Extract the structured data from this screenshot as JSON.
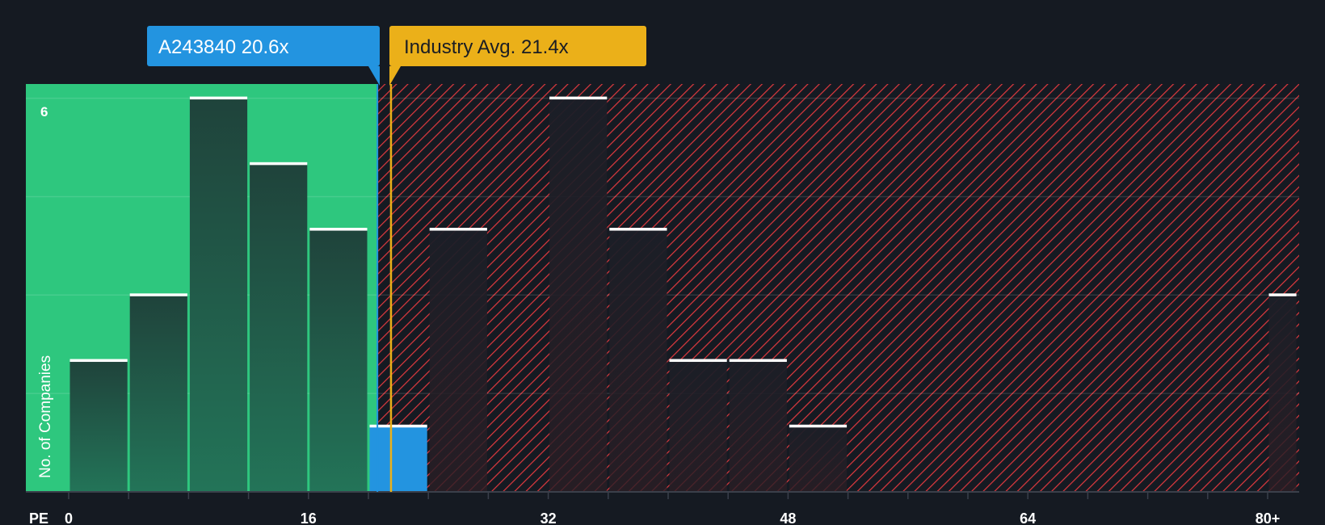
{
  "chart_data": {
    "type": "bar",
    "title": "",
    "xlabel": "PE",
    "ylabel": "No. of Companies",
    "bin_width": 4,
    "bins": [
      {
        "from": 0,
        "to": 4,
        "value": 2
      },
      {
        "from": 4,
        "to": 8,
        "value": 3
      },
      {
        "from": 8,
        "to": 12,
        "value": 6
      },
      {
        "from": 12,
        "to": 16,
        "value": 5
      },
      {
        "from": 16,
        "to": 20,
        "value": 4
      },
      {
        "from": 20,
        "to": 24,
        "value": 1,
        "highlight": true
      },
      {
        "from": 24,
        "to": 28,
        "value": 4
      },
      {
        "from": 28,
        "to": 32,
        "value": 0
      },
      {
        "from": 32,
        "to": 36,
        "value": 6
      },
      {
        "from": 36,
        "to": 40,
        "value": 4
      },
      {
        "from": 40,
        "to": 44,
        "value": 2
      },
      {
        "from": 44,
        "to": 48,
        "value": 2
      },
      {
        "from": 48,
        "to": 52,
        "value": 1
      },
      {
        "from": 80,
        "to": 82,
        "value": 3
      }
    ],
    "x_ticks": [
      "0",
      "16",
      "32",
      "48",
      "64",
      "80+"
    ],
    "x_tick_values": [
      0,
      16,
      32,
      48,
      64,
      80
    ],
    "xlim": [
      -2.8,
      82.1
    ],
    "y_ticks": [
      "6"
    ],
    "ylim": [
      0,
      6.2
    ],
    "gridlines": [
      1.5,
      3,
      4.5,
      6
    ],
    "company": {
      "label": "A243840 20.6x",
      "value": 20.6
    },
    "industry": {
      "label": "Industry Avg. 21.4x",
      "value": 21.4
    }
  },
  "colors": {
    "background": "#151a22",
    "good_zone": "#2ec77e",
    "bad_hatch": "#e0393e",
    "company": "#2394e0",
    "industry": "#ebb019"
  }
}
